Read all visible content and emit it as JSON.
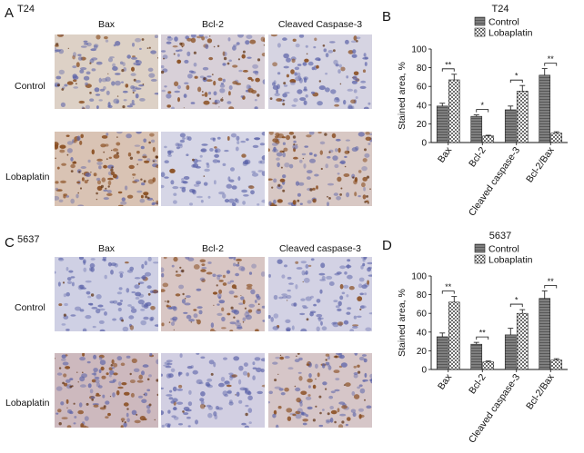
{
  "figure": {
    "panels": [
      {
        "letter": "A",
        "cell_line": "T24",
        "columns": [
          "Bax",
          "Bcl-2",
          "Cleaved Caspase-3"
        ],
        "rows": [
          "Control",
          "Lobaplatin"
        ]
      },
      {
        "letter": "C",
        "cell_line": "5637",
        "columns": [
          "Bax",
          "Bcl-2",
          "Cleaved caspase-3"
        ],
        "rows": [
          "Control",
          "Lobaplatin"
        ]
      }
    ],
    "chart_letters": [
      "B",
      "D"
    ]
  },
  "colors": {
    "control_bar": "#7f7f7f",
    "lobaplatin_bar": "#c8c8c8",
    "micro_background": "#dcd6e6",
    "hematoxylin": "#5b63a8",
    "dab": "#8a4f22"
  },
  "chart_data": [
    {
      "type": "bar",
      "title": "T24",
      "ylabel": "Stained area, %",
      "ylim": [
        0,
        100
      ],
      "yticks": [
        0,
        20,
        40,
        60,
        80,
        100
      ],
      "categories": [
        "Bax",
        "Bcl-2",
        "Cleaved caspase-3",
        "Bcl-2/Bax"
      ],
      "series": [
        {
          "name": "Control",
          "values": [
            39,
            28,
            35,
            72
          ],
          "errors": [
            3,
            1.5,
            4,
            7
          ]
        },
        {
          "name": "Lobaplatin",
          "values": [
            67,
            7,
            55,
            10
          ],
          "errors": [
            6,
            0.8,
            6,
            1.5
          ]
        }
      ],
      "significance": [
        "**",
        "*",
        "*",
        "**"
      ],
      "legend": "top-right",
      "grid": false
    },
    {
      "type": "bar",
      "title": "5637",
      "ylabel": "Stained area, %",
      "ylim": [
        0,
        100
      ],
      "yticks": [
        0,
        20,
        40,
        60,
        80,
        100
      ],
      "categories": [
        "Bax",
        "Bcl-2",
        "Cleaved caspase-3",
        "Bcl-2/Bax"
      ],
      "series": [
        {
          "name": "Control",
          "values": [
            35,
            27,
            37,
            76
          ],
          "errors": [
            4,
            2,
            7,
            8
          ]
        },
        {
          "name": "Lobaplatin",
          "values": [
            72,
            8,
            60,
            10
          ],
          "errors": [
            6,
            1,
            4,
            1.5
          ]
        }
      ],
      "significance": [
        "**",
        "**",
        "*",
        "**"
      ],
      "legend": "top-right",
      "grid": false
    }
  ]
}
